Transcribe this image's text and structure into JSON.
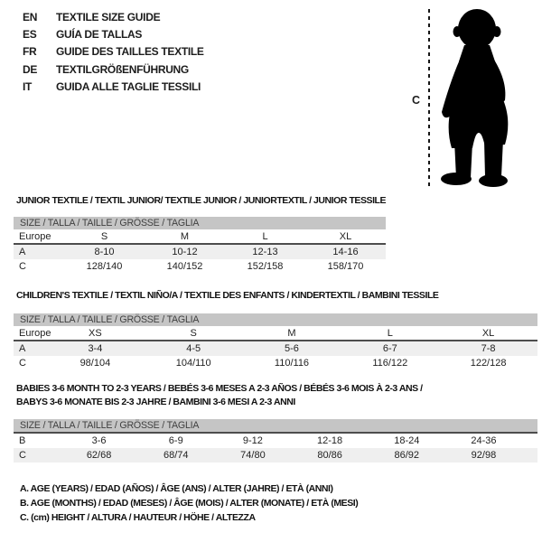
{
  "colors": {
    "size_bar_bg": "#c5c5c5",
    "alt_row_bg": "#efefef",
    "divider": "#4d4d4d",
    "silhouette": "#000000"
  },
  "language_guide": {
    "items": [
      {
        "code": "EN",
        "title": "TEXTILE SIZE GUIDE"
      },
      {
        "code": "ES",
        "title": "GUÍA DE TALLAS"
      },
      {
        "code": "FR",
        "title": "GUIDE DES TAILLES TEXTILE"
      },
      {
        "code": "DE",
        "title": "TEXTILGRÖßENFÜHRUNG"
      },
      {
        "code": "IT",
        "title": "GUIDA ALLE TAGLIE TESSILI"
      }
    ]
  },
  "figure": {
    "measure_label": "C",
    "image_name": "toddler-silhouette"
  },
  "sections": [
    {
      "heading_lines": [
        "JUNIOR TEXTILE / TEXTIL JUNIOR/ TEXTILE JUNIOR / JUNIORTEXTIL / JUNIOR TESSILE"
      ],
      "size_bar": "SIZE / TALLA / TAILLE / GRÖSSE / TAGLIA",
      "header_row": {
        "label": "Europe",
        "values": [
          "S",
          "M",
          "L",
          "XL"
        ]
      },
      "rows": [
        {
          "label": "A",
          "values": [
            "8-10",
            "10-12",
            "12-13",
            "14-16"
          ],
          "shaded": true
        },
        {
          "label": "C",
          "values": [
            "128/140",
            "140/152",
            "152/158",
            "158/170"
          ],
          "shaded": false
        }
      ]
    },
    {
      "heading_lines": [
        "CHILDREN'S TEXTILE / TEXTIL NIÑO/A / TEXTILE DES ENFANTS / KINDERTEXTIL / BAMBINI TESSILE"
      ],
      "size_bar": "SIZE / TALLA / TAILLE / GRÖSSE / TAGLIA",
      "header_row": {
        "label": "Europe",
        "values": [
          "XS",
          "S",
          "M",
          "L",
          "XL"
        ]
      },
      "rows": [
        {
          "label": "A",
          "values": [
            "3-4",
            "4-5",
            "5-6",
            "6-7",
            "7-8"
          ],
          "shaded": true
        },
        {
          "label": "C",
          "values": [
            "98/104",
            "104/110",
            "110/116",
            "116/122",
            "122/128"
          ],
          "shaded": false
        }
      ]
    },
    {
      "heading_lines": [
        "BABIES 3-6 MONTH TO 2-3 YEARS / BEBÉS 3-6 MESES A 2-3 AÑOS / BÉBÉS 3-6 MOIS À 2-3 ANS /",
        "BABYS 3-6 MONATE BIS 2-3 JAHRE / BAMBINI 3-6 MESI A 2-3 ANNI"
      ],
      "size_bar": "SIZE / TALLA / TAILLE / GRÖSSE / TAGLIA",
      "header_row": null,
      "rows": [
        {
          "label": "B",
          "values": [
            "3-6",
            "6-9",
            "9-12",
            "12-18",
            "18-24",
            "24-36"
          ],
          "shaded": false
        },
        {
          "label": "C",
          "values": [
            "62/68",
            "68/74",
            "74/80",
            "80/86",
            "86/92",
            "92/98"
          ],
          "shaded": true
        }
      ]
    }
  ],
  "footnotes": [
    "A. AGE (YEARS) / EDAD (AÑOS) / ÂGE (ANS) / ALTER (JAHRE) / ETÀ (ANNI)",
    "B. AGE (MONTHS) / EDAD (MESES) / ÂGE (MOIS) / ALTER (MONATE) / ETÀ (MESI)",
    "C. (cm) HEIGHT / ALTURA / HAUTEUR / HÖHE / ALTEZZA"
  ]
}
